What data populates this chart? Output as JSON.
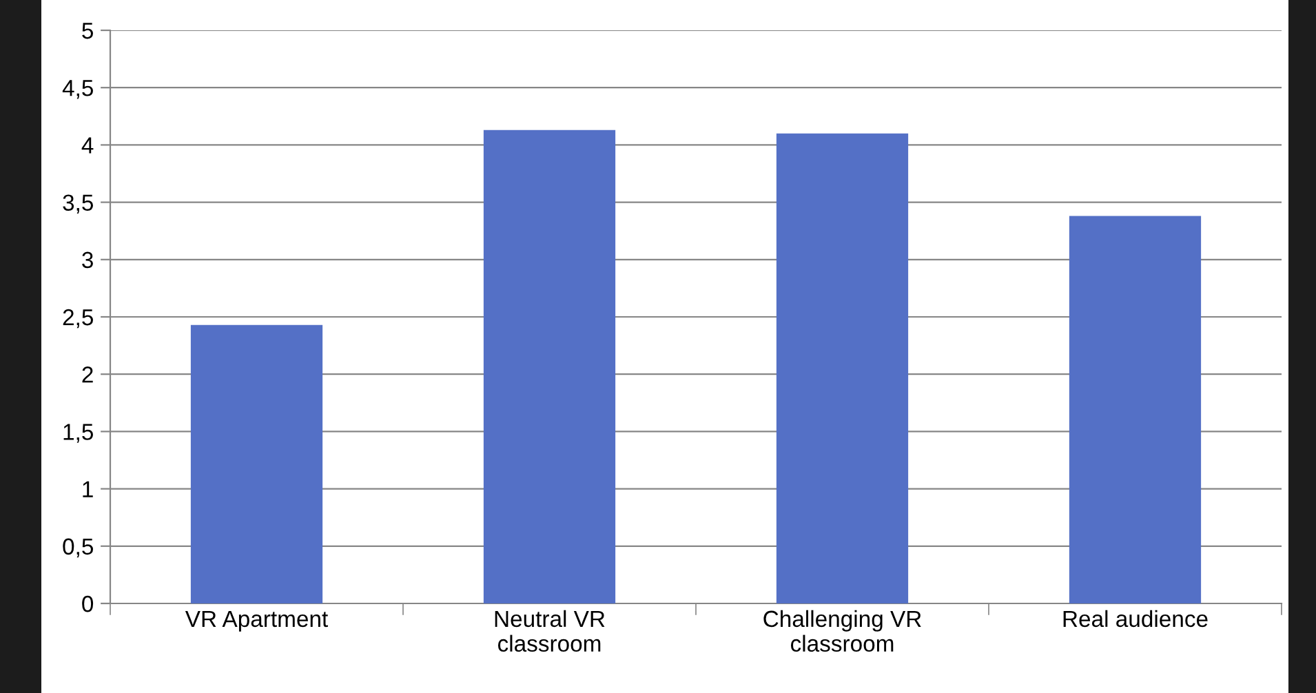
{
  "chart_data": {
    "type": "bar",
    "categories": [
      "VR Apartment",
      "Neutral VR classroom",
      "Challenging VR classroom",
      "Real audience"
    ],
    "values": [
      2.43,
      4.13,
      4.1,
      3.38
    ],
    "color": "#5470c6",
    "ylim": [
      0,
      5
    ],
    "yticks": [
      0,
      {
        "value": 0.5,
        "label": "0,5"
      },
      1,
      {
        "value": 1.5,
        "label": "1,5"
      },
      2,
      {
        "value": 2.5,
        "label": "2,5"
      },
      3,
      {
        "value": 3.5,
        "label": "3,5"
      },
      4,
      {
        "value": 4.5,
        "label": "4,5"
      },
      5
    ],
    "grid": "y"
  }
}
